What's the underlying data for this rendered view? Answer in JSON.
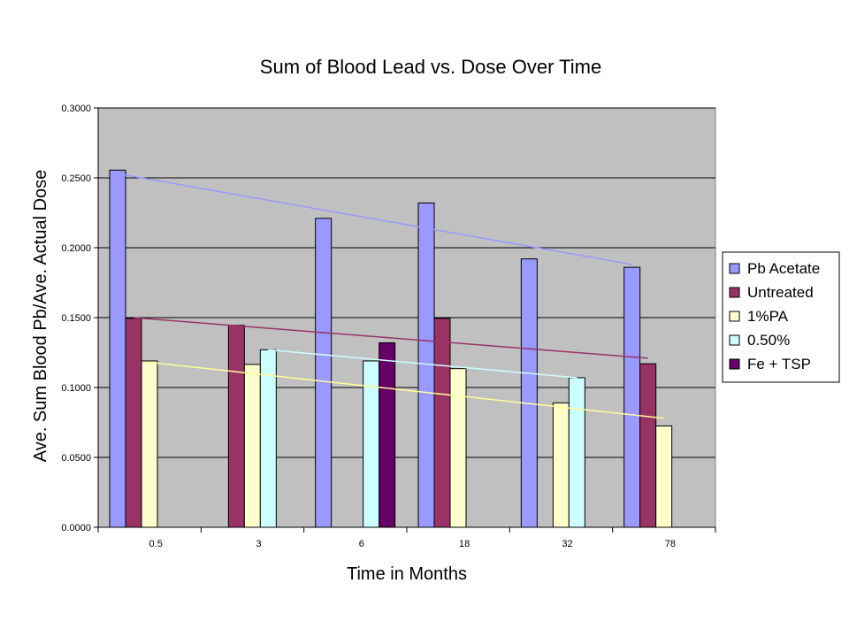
{
  "chart_data": {
    "type": "bar",
    "title": "Sum of Blood Lead vs. Dose Over Time",
    "xlabel": "Time in Months",
    "ylabel": "Ave. Sum Blood Pb/Ave. Actual Dose",
    "categories": [
      "0.5",
      "3",
      "6",
      "18",
      "32",
      "78"
    ],
    "ylim": [
      0,
      0.3
    ],
    "yticks": [
      "0.0000",
      "0.0500",
      "0.1000",
      "0.1500",
      "0.2000",
      "0.2500",
      "0.3000"
    ],
    "grid": true,
    "legend_position": "right",
    "series": [
      {
        "name": "Pb Acetate",
        "color": "#9999FF",
        "values": [
          0.2555,
          null,
          0.221,
          0.232,
          0.192,
          0.186
        ]
      },
      {
        "name": "Untreated",
        "color": "#993366",
        "values": [
          0.1495,
          0.1445,
          null,
          0.1495,
          null,
          0.117
        ]
      },
      {
        "name": "1%PA",
        "color": "#FFFFCC",
        "values": [
          0.119,
          0.1165,
          null,
          0.1135,
          0.089,
          0.0725
        ]
      },
      {
        "name": "0.50%",
        "color": "#CCFFFF",
        "values": [
          null,
          0.127,
          0.119,
          null,
          0.107,
          null
        ]
      },
      {
        "name": "Fe + TSP",
        "color": "#660066",
        "values": [
          null,
          null,
          0.132,
          null,
          null,
          null
        ]
      }
    ],
    "trendlines": [
      {
        "series": "Pb Acetate",
        "color": "#9999FF",
        "from": [
          0.5,
          0.253
        ],
        "to": [
          78,
          0.188
        ]
      },
      {
        "series": "Untreated",
        "color": "#993366",
        "from": [
          0.5,
          0.15
        ],
        "to": [
          78,
          0.121
        ]
      },
      {
        "series": "1%PA",
        "color": "#FFFF99",
        "from": [
          0.5,
          0.118
        ],
        "to": [
          78,
          0.078
        ]
      },
      {
        "series": "0.50%",
        "color": "#CCFFFF",
        "from": [
          3,
          0.127
        ],
        "to": [
          32,
          0.107
        ]
      }
    ],
    "plot_background": "#C0C0C0"
  }
}
